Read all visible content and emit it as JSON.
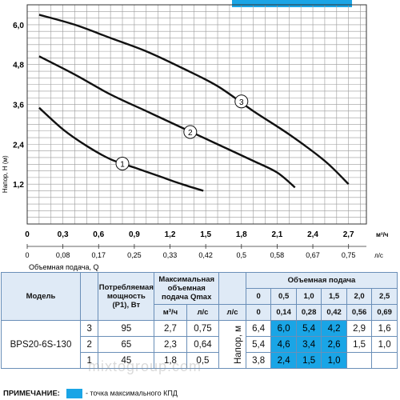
{
  "chart_data": {
    "type": "line",
    "ylabel": "Напор, Н (м)",
    "xlabel": "Объемная подача, Q",
    "x_unit_top": "м³/ч",
    "x_unit_bottom": "л/с",
    "xlim": [
      0,
      2.85
    ],
    "ylim": [
      0,
      6.6
    ],
    "x_ticks": [
      "0",
      "0,3",
      "0,6",
      "0,9",
      "1,2",
      "1,5",
      "1,8",
      "2,1",
      "2,4",
      "2,7"
    ],
    "x_ticks_ls": [
      "0",
      "0,08",
      "0,17",
      "0,25",
      "0,33",
      "0,42",
      "0,5",
      "0,58",
      "0,67",
      "0,75"
    ],
    "y_ticks": [
      "1,2",
      "2,4",
      "3,6",
      "4,8",
      "6,0"
    ],
    "series": [
      {
        "name": "1",
        "points": [
          [
            0.1,
            3.5
          ],
          [
            0.3,
            2.85
          ],
          [
            0.5,
            2.35
          ],
          [
            0.7,
            1.95
          ],
          [
            0.9,
            1.7
          ],
          [
            1.1,
            1.45
          ],
          [
            1.3,
            1.2
          ],
          [
            1.48,
            1.0
          ]
        ]
      },
      {
        "name": "2",
        "points": [
          [
            0.1,
            5.05
          ],
          [
            0.4,
            4.5
          ],
          [
            0.7,
            3.9
          ],
          [
            1.0,
            3.4
          ],
          [
            1.3,
            2.9
          ],
          [
            1.6,
            2.4
          ],
          [
            1.9,
            1.9
          ],
          [
            2.1,
            1.55
          ],
          [
            2.25,
            1.1
          ]
        ]
      },
      {
        "name": "3",
        "points": [
          [
            0.1,
            6.3
          ],
          [
            0.4,
            6.0
          ],
          [
            0.7,
            5.6
          ],
          [
            1.0,
            5.2
          ],
          [
            1.3,
            4.7
          ],
          [
            1.6,
            4.15
          ],
          [
            1.9,
            3.4
          ],
          [
            2.2,
            2.7
          ],
          [
            2.5,
            1.9
          ],
          [
            2.7,
            1.2
          ]
        ]
      }
    ],
    "curve_labels": [
      {
        "text": "1",
        "x": 0.8,
        "y": 1.82
      },
      {
        "text": "2",
        "x": 1.37,
        "y": 2.77
      },
      {
        "text": "3",
        "x": 1.8,
        "y": 3.69
      }
    ]
  },
  "table": {
    "col_model": "Модель",
    "col_power": "Потребляемая мощность (Р1), Вт",
    "col_qmax": "Максимальная объемная подача Qmax",
    "col_flow": "Объемная подача",
    "unit_m3h": "м³/ч",
    "unit_ls": "л/с",
    "flow_m3h": [
      "0",
      "0,5",
      "1,0",
      "1,5",
      "2,0",
      "2,5"
    ],
    "flow_ls": [
      "0",
      "0,14",
      "0,28",
      "0,42",
      "0,56",
      "0,69"
    ],
    "head_label": "Напор, м",
    "model": "BPS20-6S-130",
    "rows": [
      {
        "speed": "3",
        "power": "95",
        "q_m3h": "2,7",
        "q_ls": "0,75",
        "heads": [
          "6,4",
          "6,0",
          "5,4",
          "4,2",
          "2,9",
          "1,6"
        ]
      },
      {
        "speed": "2",
        "power": "65",
        "q_m3h": "2,3",
        "q_ls": "0,64",
        "heads": [
          "5,4",
          "4,6",
          "3,4",
          "2,6",
          "1,5",
          "1,0"
        ]
      },
      {
        "speed": "1",
        "power": "45",
        "q_m3h": "1,8",
        "q_ls": "0,5",
        "heads": [
          "3,8",
          "2,4",
          "1,5",
          "1,0",
          "",
          ""
        ]
      }
    ],
    "highlight_color": "#1aa5e6"
  },
  "note": {
    "title": "ПРИМЕЧАНИЕ:",
    "text": "- точка максимального КПД"
  },
  "watermark": "mixtogroup.com"
}
